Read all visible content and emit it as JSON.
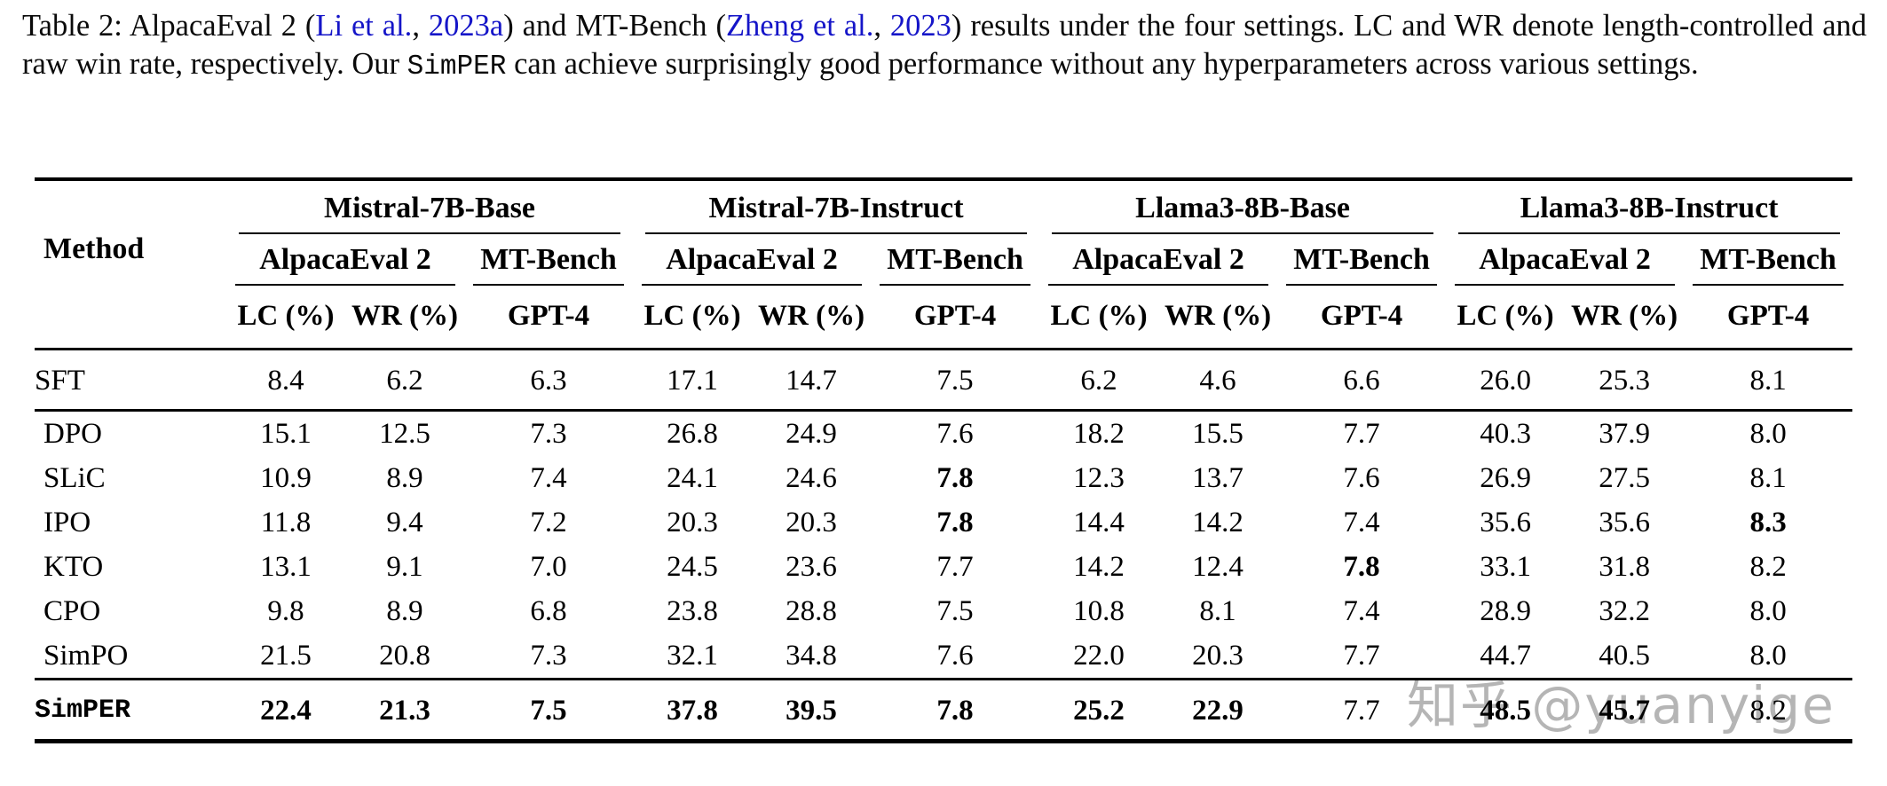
{
  "caption": {
    "segments": [
      {
        "text": "Table 2: AlpacaEval 2 (",
        "style": "plain"
      },
      {
        "text": "Li et al.",
        "style": "link"
      },
      {
        "text": ", ",
        "style": "plain"
      },
      {
        "text": "2023a",
        "style": "link"
      },
      {
        "text": ") and MT-Bench (",
        "style": "plain"
      },
      {
        "text": "Zheng et al.",
        "style": "link"
      },
      {
        "text": ", ",
        "style": "plain"
      },
      {
        "text": "2023",
        "style": "link"
      },
      {
        "text": ") results under the four settings. LC and WR denote length-controlled and raw win rate, respectively. Our ",
        "style": "plain"
      },
      {
        "text": "SimPER",
        "style": "code"
      },
      {
        "text": " can achieve surprisingly good performance without any hyperparameters across various settings.",
        "style": "plain"
      }
    ]
  },
  "table": {
    "method_header": "Method",
    "groups": [
      {
        "name": "Mistral-7B-Base",
        "subgroups": [
          "AlpacaEval 2",
          "MT-Bench"
        ]
      },
      {
        "name": "Mistral-7B-Instruct",
        "subgroups": [
          "AlpacaEval 2",
          "MT-Bench"
        ]
      },
      {
        "name": "Llama3-8B-Base",
        "subgroups": [
          "AlpacaEval 2",
          "MT-Bench"
        ]
      },
      {
        "name": "Llama3-8B-Instruct",
        "subgroups": [
          "AlpacaEval 2",
          "MT-Bench"
        ]
      }
    ],
    "metric_headers": [
      "LC (%)",
      "WR (%)",
      "GPT-4"
    ],
    "rows": [
      {
        "method": "SFT",
        "mono": false,
        "tall": true,
        "section_end": true,
        "values": [
          {
            "v": "8.4",
            "b": false
          },
          {
            "v": "6.2",
            "b": false
          },
          {
            "v": "6.3",
            "b": false
          },
          {
            "v": "17.1",
            "b": false
          },
          {
            "v": "14.7",
            "b": false
          },
          {
            "v": "7.5",
            "b": false
          },
          {
            "v": "6.2",
            "b": false
          },
          {
            "v": "4.6",
            "b": false
          },
          {
            "v": "6.6",
            "b": false
          },
          {
            "v": "26.0",
            "b": false
          },
          {
            "v": "25.3",
            "b": false
          },
          {
            "v": "8.1",
            "b": false
          }
        ]
      },
      {
        "method": "DPO",
        "mono": false,
        "tall": false,
        "section_end": false,
        "values": [
          {
            "v": "15.1",
            "b": false
          },
          {
            "v": "12.5",
            "b": false
          },
          {
            "v": "7.3",
            "b": false
          },
          {
            "v": "26.8",
            "b": false
          },
          {
            "v": "24.9",
            "b": false
          },
          {
            "v": "7.6",
            "b": false
          },
          {
            "v": "18.2",
            "b": false
          },
          {
            "v": "15.5",
            "b": false
          },
          {
            "v": "7.7",
            "b": false
          },
          {
            "v": "40.3",
            "b": false
          },
          {
            "v": "37.9",
            "b": false
          },
          {
            "v": "8.0",
            "b": false
          }
        ]
      },
      {
        "method": "SLiC",
        "mono": false,
        "tall": false,
        "section_end": false,
        "values": [
          {
            "v": "10.9",
            "b": false
          },
          {
            "v": "8.9",
            "b": false
          },
          {
            "v": "7.4",
            "b": false
          },
          {
            "v": "24.1",
            "b": false
          },
          {
            "v": "24.6",
            "b": false
          },
          {
            "v": "7.8",
            "b": true
          },
          {
            "v": "12.3",
            "b": false
          },
          {
            "v": "13.7",
            "b": false
          },
          {
            "v": "7.6",
            "b": false
          },
          {
            "v": "26.9",
            "b": false
          },
          {
            "v": "27.5",
            "b": false
          },
          {
            "v": "8.1",
            "b": false
          }
        ]
      },
      {
        "method": "IPO",
        "mono": false,
        "tall": false,
        "section_end": false,
        "values": [
          {
            "v": "11.8",
            "b": false
          },
          {
            "v": "9.4",
            "b": false
          },
          {
            "v": "7.2",
            "b": false
          },
          {
            "v": "20.3",
            "b": false
          },
          {
            "v": "20.3",
            "b": false
          },
          {
            "v": "7.8",
            "b": true
          },
          {
            "v": "14.4",
            "b": false
          },
          {
            "v": "14.2",
            "b": false
          },
          {
            "v": "7.4",
            "b": false
          },
          {
            "v": "35.6",
            "b": false
          },
          {
            "v": "35.6",
            "b": false
          },
          {
            "v": "8.3",
            "b": true
          }
        ]
      },
      {
        "method": "KTO",
        "mono": false,
        "tall": false,
        "section_end": false,
        "values": [
          {
            "v": "13.1",
            "b": false
          },
          {
            "v": "9.1",
            "b": false
          },
          {
            "v": "7.0",
            "b": false
          },
          {
            "v": "24.5",
            "b": false
          },
          {
            "v": "23.6",
            "b": false
          },
          {
            "v": "7.7",
            "b": false
          },
          {
            "v": "14.2",
            "b": false
          },
          {
            "v": "12.4",
            "b": false
          },
          {
            "v": "7.8",
            "b": true
          },
          {
            "v": "33.1",
            "b": false
          },
          {
            "v": "31.8",
            "b": false
          },
          {
            "v": "8.2",
            "b": false
          }
        ]
      },
      {
        "method": "CPO",
        "mono": false,
        "tall": false,
        "section_end": false,
        "values": [
          {
            "v": "9.8",
            "b": false
          },
          {
            "v": "8.9",
            "b": false
          },
          {
            "v": "6.8",
            "b": false
          },
          {
            "v": "23.8",
            "b": false
          },
          {
            "v": "28.8",
            "b": false
          },
          {
            "v": "7.5",
            "b": false
          },
          {
            "v": "10.8",
            "b": false
          },
          {
            "v": "8.1",
            "b": false
          },
          {
            "v": "7.4",
            "b": false
          },
          {
            "v": "28.9",
            "b": false
          },
          {
            "v": "32.2",
            "b": false
          },
          {
            "v": "8.0",
            "b": false
          }
        ]
      },
      {
        "method": "SimPO",
        "mono": false,
        "tall": false,
        "section_end": true,
        "values": [
          {
            "v": "21.5",
            "b": false
          },
          {
            "v": "20.8",
            "b": false
          },
          {
            "v": "7.3",
            "b": false
          },
          {
            "v": "32.1",
            "b": false
          },
          {
            "v": "34.8",
            "b": false
          },
          {
            "v": "7.6",
            "b": false
          },
          {
            "v": "22.0",
            "b": false
          },
          {
            "v": "20.3",
            "b": false
          },
          {
            "v": "7.7",
            "b": false
          },
          {
            "v": "44.7",
            "b": false
          },
          {
            "v": "40.5",
            "b": false
          },
          {
            "v": "8.0",
            "b": false
          }
        ]
      },
      {
        "method": "SimPER",
        "mono": true,
        "tall": true,
        "section_end": false,
        "values": [
          {
            "v": "22.4",
            "b": true
          },
          {
            "v": "21.3",
            "b": true
          },
          {
            "v": "7.5",
            "b": true
          },
          {
            "v": "37.8",
            "b": true
          },
          {
            "v": "39.5",
            "b": true
          },
          {
            "v": "7.8",
            "b": true
          },
          {
            "v": "25.2",
            "b": true
          },
          {
            "v": "22.9",
            "b": true
          },
          {
            "v": "7.7",
            "b": false
          },
          {
            "v": "48.5",
            "b": true
          },
          {
            "v": "45.7",
            "b": true
          },
          {
            "v": "8.2",
            "b": false
          }
        ]
      }
    ]
  },
  "watermark": {
    "text": "知乎 @yuanyige"
  },
  "colors": {
    "link_blue": "#1515c8",
    "text_black": "#0a0a0a",
    "watermark_gray": "#b5b5b5"
  }
}
